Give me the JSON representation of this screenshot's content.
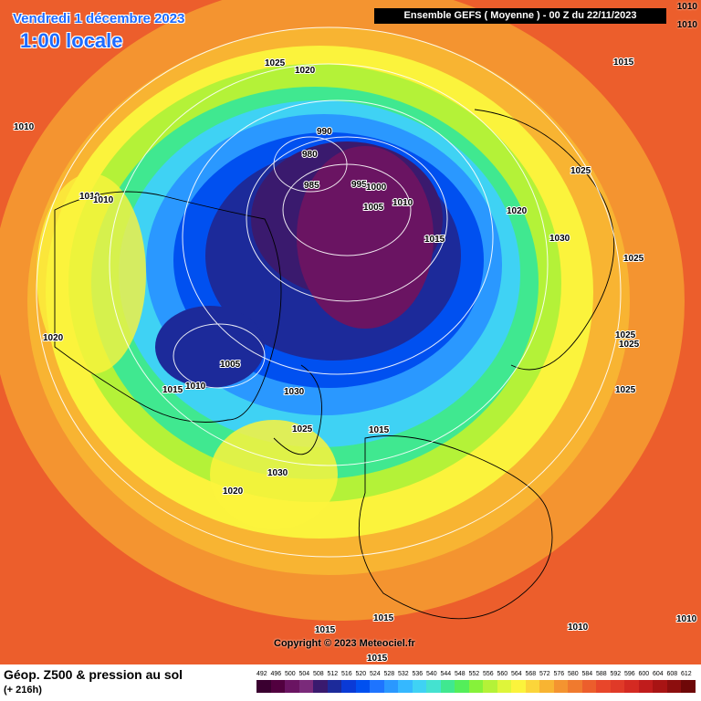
{
  "header": {
    "date": "Vendredi 1 décembre 2023",
    "time": "1:00 locale",
    "run": "Ensemble GEFS  ( Moyenne )  -  00 Z du 22/11/2023",
    "corner_top": "1010",
    "corner_sub": "1010"
  },
  "copyright": "Copyright © 2023 Meteociel.fr",
  "footer": {
    "caption": "Géop. Z500 & pression au sol",
    "lead": "(+ 216h)"
  },
  "legend": {
    "labels": [
      "492",
      "496",
      "500",
      "504",
      "508",
      "512",
      "516",
      "520",
      "524",
      "528",
      "532",
      "536",
      "540",
      "544",
      "548",
      "552",
      "556",
      "560",
      "564",
      "568",
      "572",
      "576",
      "580",
      "584",
      "588",
      "592",
      "596",
      "600",
      "604",
      "608",
      "612"
    ],
    "colors": [
      "#3a0030",
      "#52003f",
      "#6a1462",
      "#7a2a7a",
      "#3a1a6e",
      "#1c2a9a",
      "#0a3ad6",
      "#0050f0",
      "#1e74ff",
      "#2a98ff",
      "#35b8ff",
      "#3fd2f4",
      "#44e2d0",
      "#40e890",
      "#54ee5a",
      "#86f23a",
      "#b4f238",
      "#def53a",
      "#fbf33c",
      "#fbd53a",
      "#f8b432",
      "#f49430",
      "#f07a2e",
      "#ec5e2c",
      "#e8462a",
      "#e03a28",
      "#d42a22",
      "#c01c1c",
      "#a81414",
      "#8c0e0e",
      "#6e0808"
    ]
  },
  "isobars": [
    {
      "label": "1025"
    },
    {
      "label": "1020"
    },
    {
      "label": "1015"
    },
    {
      "label": "1010"
    },
    {
      "label": "990"
    },
    {
      "label": "980"
    },
    {
      "label": "985"
    },
    {
      "label": "995"
    },
    {
      "label": "1000"
    },
    {
      "label": "1010"
    },
    {
      "label": "1005"
    },
    {
      "label": "1020"
    },
    {
      "label": "1025"
    },
    {
      "label": "1010"
    },
    {
      "label": "1010"
    },
    {
      "label": "1015"
    },
    {
      "label": "1030"
    },
    {
      "label": "1025"
    },
    {
      "label": "1020"
    },
    {
      "label": "1025"
    },
    {
      "label": "1025"
    },
    {
      "label": "1005"
    },
    {
      "label": "1015"
    },
    {
      "label": "1010"
    },
    {
      "label": "1030"
    },
    {
      "label": "1025"
    },
    {
      "label": "1015"
    },
    {
      "label": "1025"
    },
    {
      "label": "1030"
    },
    {
      "label": "1020"
    },
    {
      "label": "1015"
    },
    {
      "label": "1015"
    },
    {
      "label": "1015"
    },
    {
      "label": "1010"
    },
    {
      "label": "1010"
    }
  ]
}
